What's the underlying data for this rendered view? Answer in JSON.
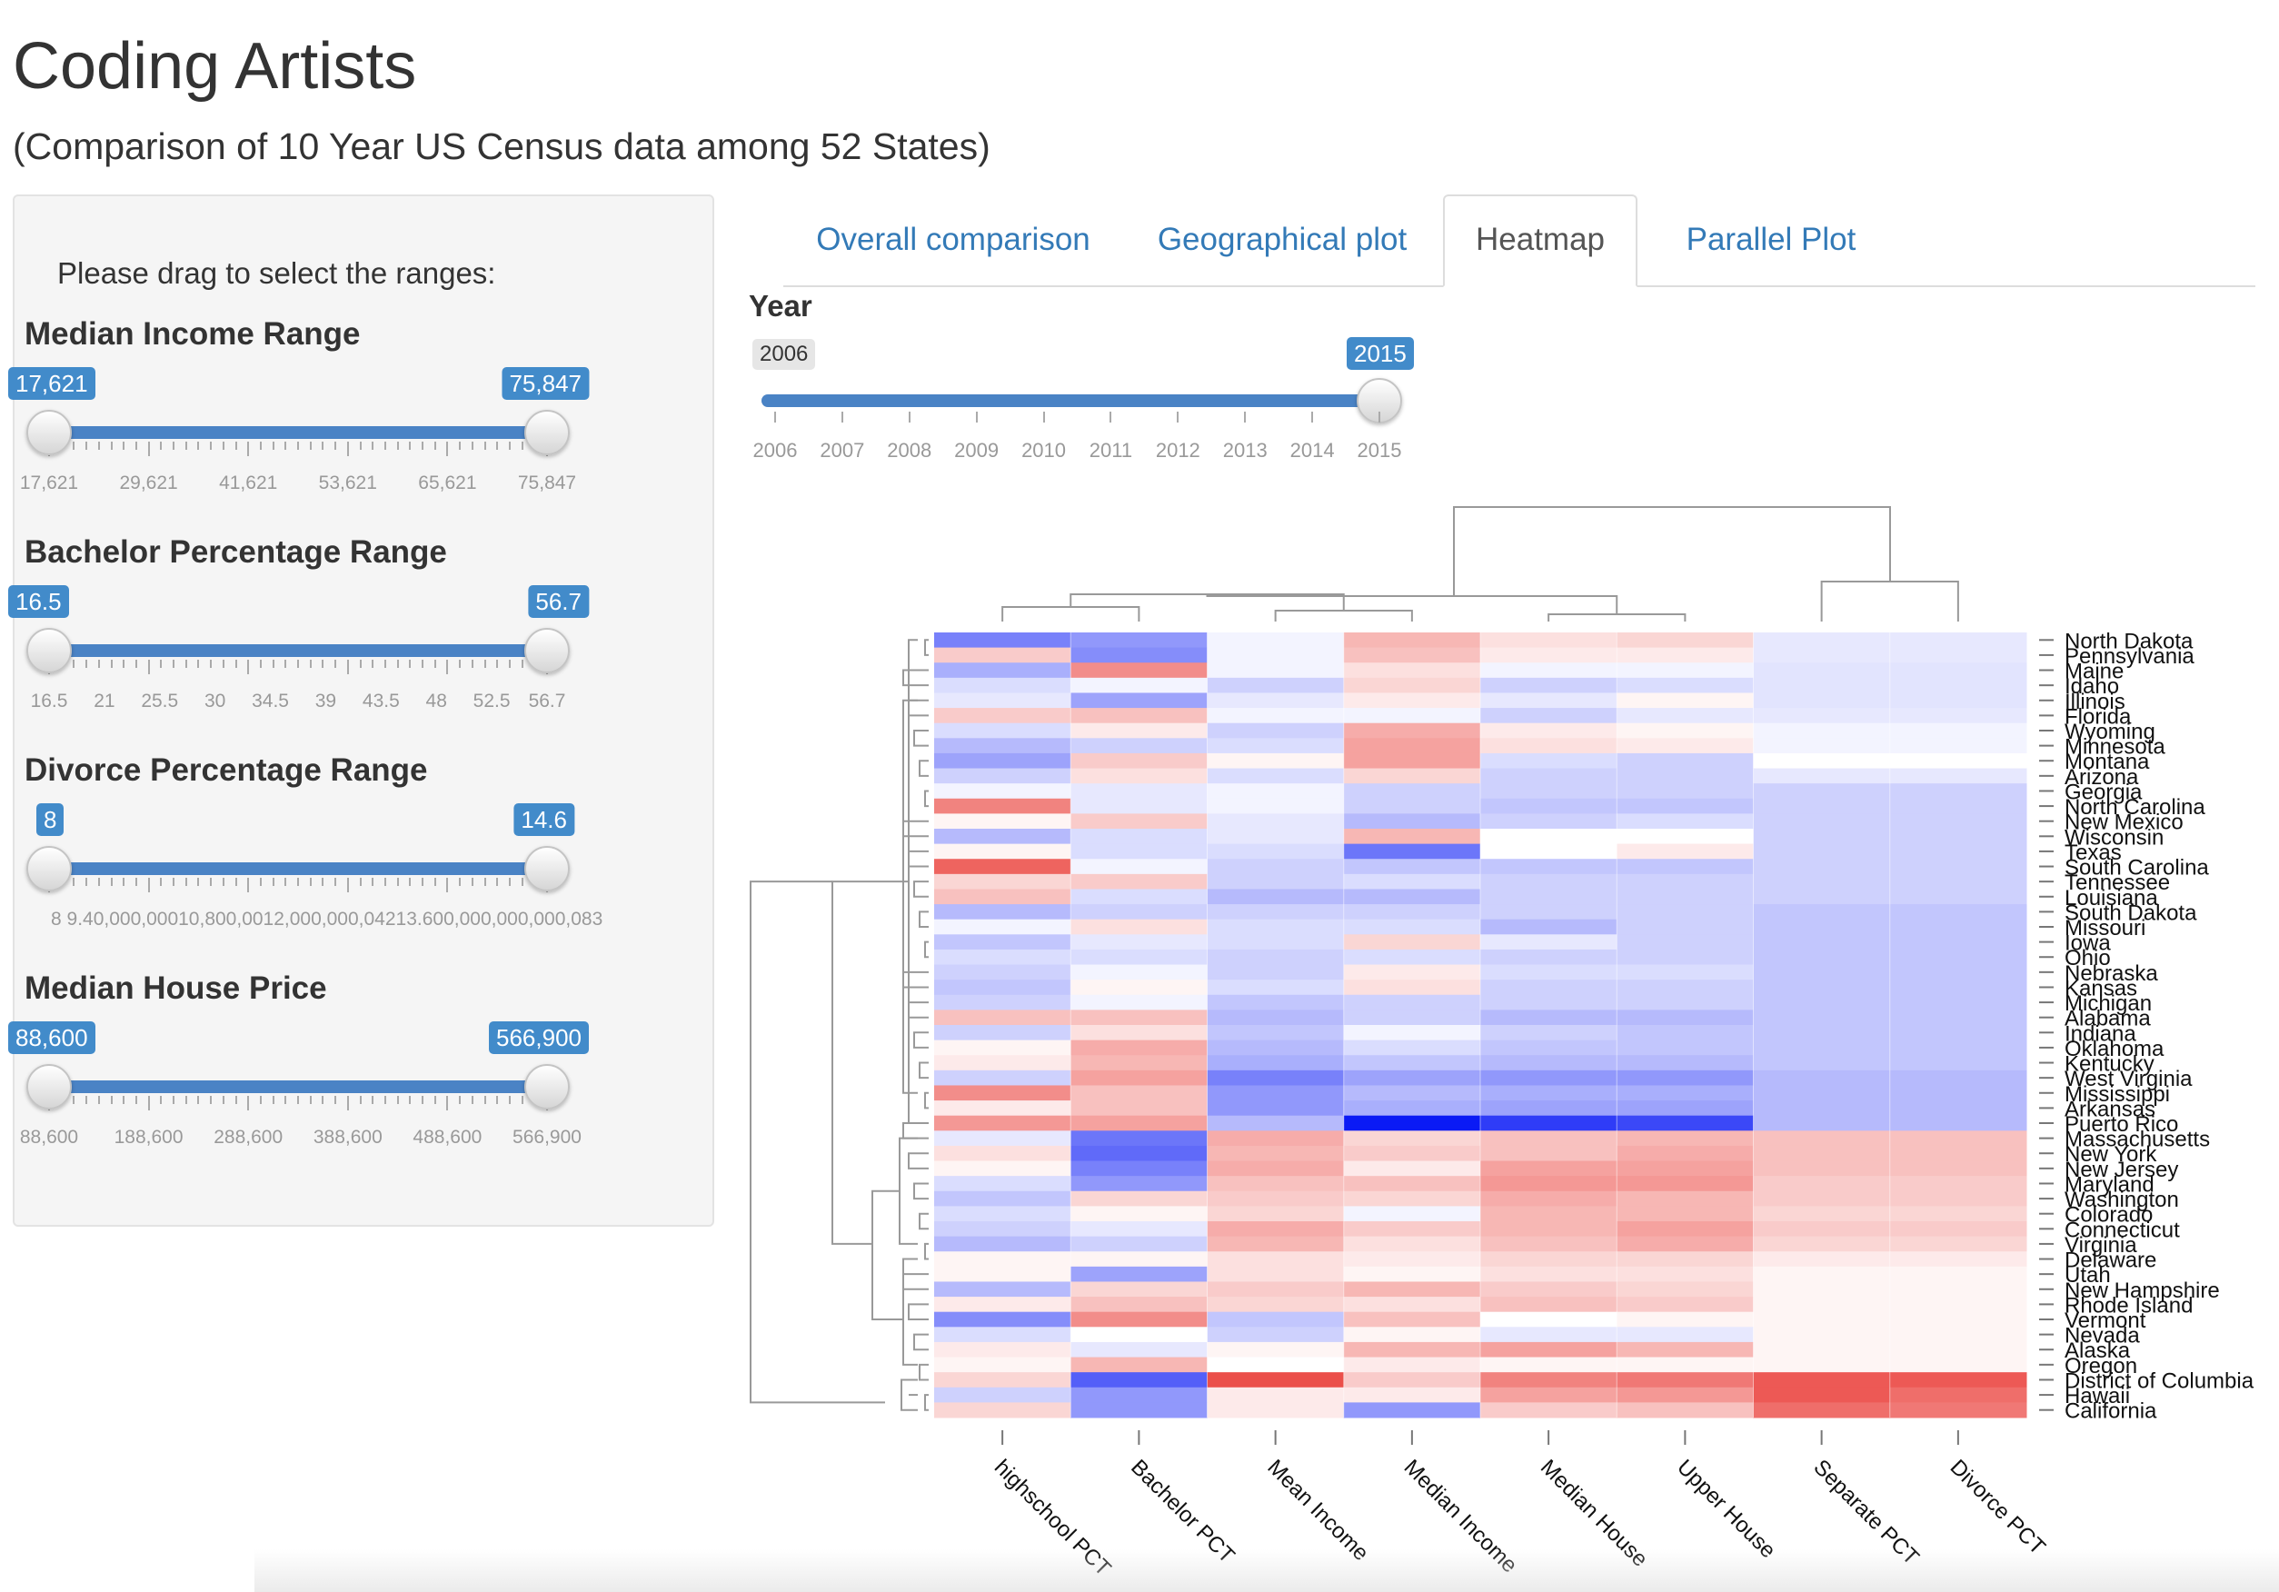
{
  "header": {
    "title": "Coding Artists",
    "subtitle": "(Comparison of 10 Year US Census data among 52 States)"
  },
  "sidebar": {
    "hint": "Please drag to select the ranges:",
    "sliders": [
      {
        "label": "Median Income Range",
        "min_value": "17,621",
        "max_value": "75,847",
        "selected_from_fraction": 0,
        "selected_to_fraction": 1,
        "tick_labels": [
          "17,621",
          "29,621",
          "41,621",
          "53,621",
          "65,621",
          "75,847"
        ]
      },
      {
        "label": "Bachelor Percentage Range",
        "min_value": "16.5",
        "max_value": "56.7",
        "selected_from_fraction": 0,
        "selected_to_fraction": 1,
        "tick_labels": [
          "16.5",
          "21",
          "25.5",
          "30",
          "34.5",
          "39",
          "43.5",
          "48",
          "52.5",
          "56.7"
        ]
      },
      {
        "label": "Divorce Percentage Range",
        "min_value": "8",
        "max_value": "14.6",
        "selected_from_fraction": 0,
        "selected_to_fraction": 1,
        "tick_labels": [
          "8",
          "9.40,000,000,000,002",
          "10,600,000",
          "12,000,000,042",
          "13.600,000,000,000,083",
          "14.6"
        ],
        "tick_labels_rendered": "8  9.40,000,00010,800,0012,000,000,04213.600,000,000,000,083"
      },
      {
        "label": "Median House Price",
        "min_value": "88,600",
        "max_value": "566,900",
        "selected_from_fraction": 0,
        "selected_to_fraction": 1,
        "tick_labels": [
          "88,600",
          "188,600",
          "288,600",
          "388,600",
          "488,600",
          "566,900"
        ]
      }
    ]
  },
  "tabs": [
    {
      "label": "Overall comparison",
      "active": false
    },
    {
      "label": "Geographical plot",
      "active": false
    },
    {
      "label": "Heatmap",
      "active": true
    },
    {
      "label": "Parallel Plot",
      "active": false
    }
  ],
  "year_slider": {
    "label": "Year",
    "min_value": "2006",
    "max_value": "2015",
    "selected_value": "2015",
    "tick_labels": [
      "2006",
      "2007",
      "2008",
      "2009",
      "2010",
      "2011",
      "2012",
      "2013",
      "2014",
      "2015"
    ]
  },
  "chart_data": {
    "type": "heatmap",
    "title": "",
    "columns": [
      "highschool PCT",
      "Bachelor PCT",
      "Mean Income",
      "Median Income",
      "Median House",
      "Upper House",
      "Separate PCT",
      "Divorce PCT"
    ],
    "rows": [
      "North Dakota",
      "Pennsylvania",
      "Maine",
      "Idaho",
      "Illinois",
      "Florida",
      "Wyoming",
      "Minnesota",
      "Montana",
      "Arizona",
      "Georgia",
      "North Carolina",
      "New Mexico",
      "Wisconsin",
      "Texas",
      "South Carolina",
      "Tennessee",
      "Louisiana",
      "South Dakota",
      "Missouri",
      "Iowa",
      "Ohio",
      "Nebraska",
      "Kansas",
      "Michigan",
      "Alabama",
      "Indiana",
      "Oklahoma",
      "Kentucky",
      "West Virginia",
      "Mississippi",
      "Arkansas",
      "Puerto Rico",
      "Massachusetts",
      "New York",
      "New Jersey",
      "Maryland",
      "Washington",
      "Colorado",
      "Connecticut",
      "Virginia",
      "Delaware",
      "Utah",
      "New Hampshire",
      "Rhode Island",
      "Vermont",
      "Nevada",
      "Alaska",
      "Oregon",
      "District of Columbia",
      "Hawaii",
      "California"
    ],
    "color_scale": {
      "low": "#0a1af5",
      "mid": "#ffffff",
      "high": "#e8302a"
    },
    "values": [
      [
        -0.55,
        -0.45,
        -0.05,
        0.35,
        0.15,
        0.2,
        -0.1,
        -0.1
      ],
      [
        0.25,
        -0.5,
        -0.05,
        0.3,
        0.1,
        0.1,
        -0.1,
        -0.1
      ],
      [
        -0.35,
        0.55,
        -0.05,
        0.15,
        -0.05,
        -0.05,
        -0.12,
        -0.12
      ],
      [
        -0.15,
        -0.05,
        -0.2,
        0.2,
        -0.2,
        -0.15,
        -0.12,
        -0.12
      ],
      [
        -0.1,
        -0.4,
        -0.1,
        0.1,
        -0.1,
        0.05,
        -0.12,
        -0.12
      ],
      [
        0.25,
        0.3,
        -0.05,
        -0.05,
        -0.2,
        -0.1,
        -0.1,
        -0.1
      ],
      [
        -0.15,
        0.1,
        -0.2,
        0.4,
        0.1,
        0.05,
        -0.05,
        -0.05
      ],
      [
        -0.3,
        -0.2,
        -0.15,
        0.45,
        0.15,
        0.1,
        -0.05,
        -0.05
      ],
      [
        -0.4,
        0.25,
        0.05,
        0.45,
        -0.15,
        -0.2,
        0.0,
        0.0
      ],
      [
        -0.2,
        0.15,
        -0.15,
        0.2,
        -0.2,
        -0.2,
        -0.1,
        -0.1
      ],
      [
        -0.05,
        -0.1,
        -0.05,
        -0.2,
        -0.2,
        -0.2,
        -0.2,
        -0.2
      ],
      [
        0.6,
        -0.1,
        -0.05,
        -0.2,
        -0.25,
        -0.25,
        -0.2,
        -0.2
      ],
      [
        0.05,
        0.25,
        -0.1,
        -0.3,
        -0.2,
        -0.15,
        -0.2,
        -0.2
      ],
      [
        -0.3,
        -0.15,
        -0.1,
        0.35,
        0.0,
        0.0,
        -0.2,
        -0.2
      ],
      [
        0.05,
        -0.15,
        -0.15,
        -0.6,
        0.0,
        0.1,
        -0.2,
        -0.2
      ],
      [
        0.75,
        -0.05,
        -0.2,
        -0.25,
        -0.25,
        -0.25,
        -0.2,
        -0.2
      ],
      [
        0.2,
        0.25,
        -0.2,
        -0.15,
        -0.2,
        -0.2,
        -0.2,
        -0.2
      ],
      [
        0.3,
        -0.15,
        -0.3,
        -0.3,
        -0.2,
        -0.2,
        -0.2,
        -0.2
      ],
      [
        -0.3,
        -0.2,
        -0.2,
        -0.2,
        -0.2,
        -0.2,
        -0.25,
        -0.25
      ],
      [
        -0.05,
        0.15,
        -0.15,
        -0.15,
        -0.3,
        -0.2,
        -0.25,
        -0.25
      ],
      [
        -0.25,
        -0.1,
        -0.15,
        0.2,
        -0.1,
        -0.2,
        -0.25,
        -0.25
      ],
      [
        -0.15,
        -0.15,
        -0.2,
        -0.15,
        -0.2,
        -0.2,
        -0.25,
        -0.25
      ],
      [
        -0.2,
        -0.05,
        -0.2,
        0.1,
        -0.15,
        -0.15,
        -0.25,
        -0.25
      ],
      [
        -0.25,
        0.05,
        -0.15,
        0.15,
        -0.2,
        -0.2,
        -0.25,
        -0.25
      ],
      [
        -0.2,
        -0.05,
        -0.25,
        -0.2,
        -0.2,
        -0.2,
        -0.25,
        -0.25
      ],
      [
        0.3,
        0.3,
        -0.3,
        -0.2,
        -0.3,
        -0.3,
        -0.25,
        -0.25
      ],
      [
        -0.2,
        0.15,
        -0.25,
        -0.05,
        -0.2,
        -0.25,
        -0.25,
        -0.25
      ],
      [
        0.05,
        0.4,
        -0.3,
        -0.15,
        -0.25,
        -0.25,
        -0.25,
        -0.25
      ],
      [
        0.1,
        0.35,
        -0.35,
        -0.25,
        -0.3,
        -0.3,
        -0.25,
        -0.25
      ],
      [
        -0.2,
        0.45,
        -0.55,
        -0.4,
        -0.45,
        -0.45,
        -0.3,
        -0.3
      ],
      [
        0.55,
        0.3,
        -0.45,
        -0.3,
        -0.35,
        -0.35,
        -0.3,
        -0.3
      ],
      [
        0.1,
        0.3,
        -0.45,
        -0.35,
        -0.4,
        -0.4,
        -0.3,
        -0.3
      ],
      [
        0.5,
        0.45,
        -0.3,
        -1.0,
        -0.85,
        -0.8,
        -0.3,
        -0.3
      ],
      [
        -0.1,
        -0.6,
        0.4,
        0.2,
        0.3,
        0.35,
        0.3,
        0.3
      ],
      [
        0.15,
        -0.65,
        0.35,
        0.25,
        0.3,
        0.4,
        0.3,
        0.3
      ],
      [
        0.05,
        -0.55,
        0.4,
        0.1,
        0.45,
        0.45,
        0.3,
        0.3
      ],
      [
        -0.15,
        -0.45,
        0.3,
        0.3,
        0.5,
        0.5,
        0.25,
        0.25
      ],
      [
        -0.25,
        0.2,
        0.25,
        0.2,
        0.4,
        0.35,
        0.25,
        0.25
      ],
      [
        -0.15,
        0.05,
        0.2,
        -0.05,
        0.35,
        0.35,
        0.2,
        0.2
      ],
      [
        -0.2,
        -0.1,
        0.4,
        0.25,
        0.35,
        0.45,
        0.25,
        0.25
      ],
      [
        -0.3,
        -0.2,
        0.35,
        0.15,
        0.3,
        0.4,
        0.2,
        0.2
      ],
      [
        0.05,
        0.05,
        0.15,
        0.1,
        0.2,
        0.2,
        0.1,
        0.1
      ],
      [
        0.05,
        -0.4,
        0.15,
        0.05,
        0.15,
        0.15,
        0.05,
        0.05
      ],
      [
        -0.3,
        0.2,
        0.25,
        0.35,
        0.25,
        0.2,
        0.05,
        0.05
      ],
      [
        0.1,
        0.3,
        0.2,
        0.15,
        0.3,
        0.25,
        0.05,
        0.05
      ],
      [
        -0.5,
        0.55,
        -0.25,
        0.3,
        0.0,
        0.05,
        0.05,
        0.05
      ],
      [
        -0.15,
        0.0,
        -0.2,
        0.05,
        -0.1,
        -0.1,
        0.05,
        0.05
      ],
      [
        0.1,
        -0.1,
        0.05,
        0.35,
        0.45,
        0.35,
        0.05,
        0.05
      ],
      [
        0.05,
        0.35,
        0.0,
        0.1,
        0.05,
        0.05,
        0.05,
        0.05
      ],
      [
        0.2,
        -0.7,
        0.85,
        0.25,
        0.6,
        0.65,
        0.8,
        0.8
      ],
      [
        -0.2,
        -0.45,
        0.1,
        0.1,
        0.45,
        0.5,
        0.8,
        0.7
      ],
      [
        0.2,
        -0.45,
        0.1,
        -0.45,
        0.25,
        0.3,
        0.7,
        0.65
      ]
    ],
    "xlabel": "",
    "ylabel": "",
    "row_dendrogram": true,
    "column_dendrogram": true
  }
}
